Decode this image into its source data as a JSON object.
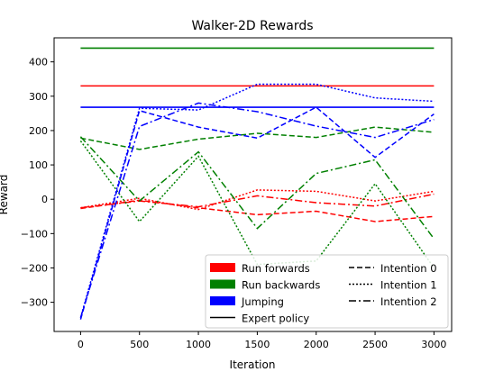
{
  "chart_data": {
    "type": "line",
    "title": "Walker-2D Rewards",
    "xlabel": "Iteration",
    "ylabel": "Reward",
    "xlim": [
      -225,
      3150
    ],
    "ylim": [
      -385,
      470
    ],
    "xticks": [
      0,
      500,
      1000,
      1500,
      2000,
      2500,
      3000
    ],
    "yticks": [
      -300,
      -200,
      -100,
      0,
      100,
      200,
      300,
      400
    ],
    "x": [
      0,
      500,
      1000,
      1500,
      2000,
      2500,
      3000
    ],
    "colors": {
      "Run forwards": "#ff0000",
      "Run backwards": "#008000",
      "Jumping": "#0000ff"
    },
    "expert": [
      {
        "task": "Run backwards",
        "value": 440
      },
      {
        "task": "Run forwards",
        "value": 330
      },
      {
        "task": "Jumping",
        "value": 268
      }
    ],
    "series": [
      {
        "task": "Run forwards",
        "intention": "Intention 0",
        "values": [
          -27,
          -3,
          -25,
          -45,
          -35,
          -65,
          -50
        ]
      },
      {
        "task": "Run forwards",
        "intention": "Intention 1",
        "values": [
          -25,
          3,
          -30,
          27,
          23,
          -5,
          23
        ]
      },
      {
        "task": "Run forwards",
        "intention": "Intention 2",
        "values": [
          -25,
          -5,
          -22,
          10,
          -10,
          -20,
          15
        ]
      },
      {
        "task": "Run backwards",
        "intention": "Intention 0",
        "values": [
          178,
          145,
          175,
          192,
          180,
          210,
          195
        ]
      },
      {
        "task": "Run backwards",
        "intention": "Intention 1",
        "values": [
          170,
          -65,
          125,
          -190,
          -180,
          45,
          -200
        ]
      },
      {
        "task": "Run backwards",
        "intention": "Intention 2",
        "values": [
          182,
          -5,
          138,
          -85,
          75,
          115,
          -115
        ]
      },
      {
        "task": "Jumping",
        "intention": "Intention 0",
        "values": [
          -350,
          258,
          210,
          178,
          268,
          122,
          248
        ]
      },
      {
        "task": "Jumping",
        "intention": "Intention 1",
        "values": [
          -345,
          265,
          260,
          335,
          335,
          295,
          285
        ]
      },
      {
        "task": "Jumping",
        "intention": "Intention 2",
        "values": [
          -345,
          212,
          280,
          255,
          213,
          180,
          232
        ]
      }
    ],
    "legend": {
      "placement": "lower-right",
      "task_entries": [
        "Run forwards",
        "Run backwards",
        "Jumping"
      ],
      "expert_label": "Expert policy",
      "style_entries": [
        {
          "label": "Intention 0",
          "dash": "dashed"
        },
        {
          "label": "Intention 1",
          "dash": "dotted"
        },
        {
          "label": "Intention 2",
          "dash": "dashdot"
        }
      ]
    }
  }
}
